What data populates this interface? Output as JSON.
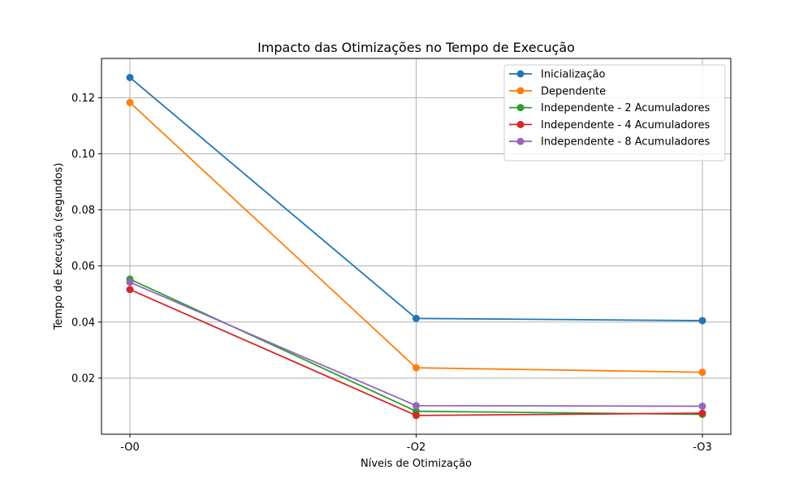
{
  "chart_data": {
    "type": "line",
    "title": "Impacto das Otimizações no Tempo de Execução",
    "xlabel": "Níveis de Otimização",
    "ylabel": "Tempo de Execução (segundos)",
    "categories": [
      "-O0",
      "-O2",
      "-O3"
    ],
    "ylim": [
      0.0,
      0.134
    ],
    "yticks": [
      0.02,
      0.04,
      0.06,
      0.08,
      0.1,
      0.12
    ],
    "ytick_labels": [
      "0.02",
      "0.04",
      "0.06",
      "0.08",
      "0.10",
      "0.12"
    ],
    "grid": true,
    "legend_position": "upper-right",
    "series": [
      {
        "name": "Inicialização",
        "color": "#1f77b4",
        "values": [
          0.1272,
          0.0413,
          0.0405
        ]
      },
      {
        "name": "Dependente",
        "color": "#ff7f0e",
        "values": [
          0.1183,
          0.0237,
          0.0221
        ]
      },
      {
        "name": "Independente - 2 Acumuladores",
        "color": "#2ca02c",
        "values": [
          0.0553,
          0.0082,
          0.0071
        ]
      },
      {
        "name": "Independente - 4 Acumuladores",
        "color": "#d62728",
        "values": [
          0.0516,
          0.0067,
          0.0075
        ]
      },
      {
        "name": "Independente - 8 Acumuladores",
        "color": "#9467bd",
        "values": [
          0.0542,
          0.0102,
          0.01
        ]
      }
    ]
  }
}
